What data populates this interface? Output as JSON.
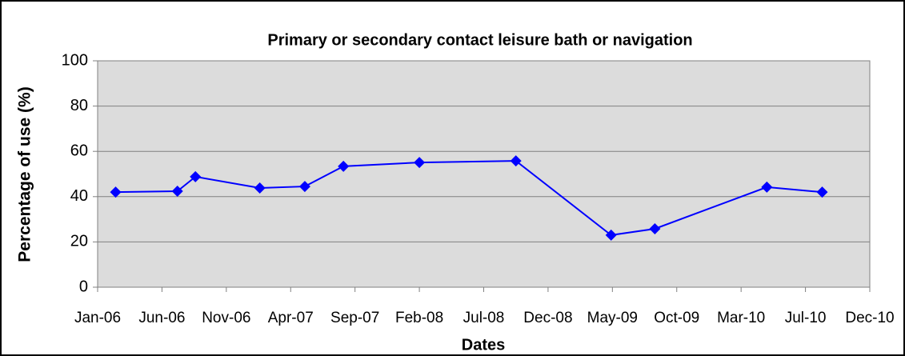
{
  "chart_data": {
    "type": "line",
    "title": "Primary or secondary contact leisure bath or navigation",
    "x_label": "Dates",
    "y_label": "Percentage of use (%)",
    "x": [
      1.4,
      6.2,
      7.6,
      12.6,
      16.1,
      19.1,
      25.0,
      32.5,
      39.9,
      43.3,
      52.0,
      56.3
    ],
    "series": [
      {
        "name": "Percentage of use",
        "color": "#0000ff",
        "values": [
          42,
          42.4,
          48.8,
          43.8,
          44.5,
          53.4,
          55.1,
          55.8,
          23,
          25.8,
          44.2,
          42
        ]
      }
    ],
    "xlim": [
      0,
      60
    ],
    "xticks": [
      {
        "value": 0,
        "label": "Jan-06"
      },
      {
        "value": 5,
        "label": "Jun-06"
      },
      {
        "value": 10,
        "label": "Nov-06"
      },
      {
        "value": 15,
        "label": "Apr-07"
      },
      {
        "value": 20,
        "label": "Sep-07"
      },
      {
        "value": 25,
        "label": "Feb-08"
      },
      {
        "value": 30,
        "label": "Jul-08"
      },
      {
        "value": 35,
        "label": "Dec-08"
      },
      {
        "value": 40,
        "label": "May-09"
      },
      {
        "value": 45,
        "label": "Oct-09"
      },
      {
        "value": 50,
        "label": "Mar-10"
      },
      {
        "value": 55,
        "label": "Jul-10"
      },
      {
        "value": 60,
        "label": "Dec-10"
      }
    ],
    "ylim": [
      0,
      100
    ],
    "yticks": [
      0,
      20,
      40,
      60,
      80,
      100
    ],
    "grid": true
  }
}
